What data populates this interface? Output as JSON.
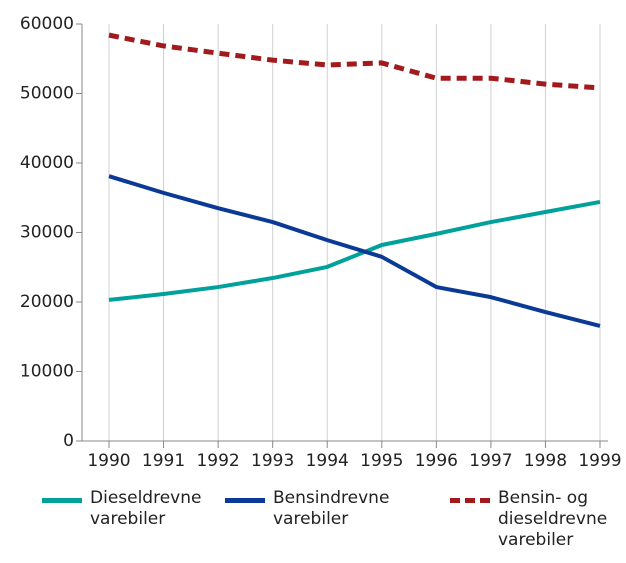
{
  "chart_data": {
    "type": "line",
    "x": [
      1990,
      1991,
      1992,
      1993,
      1994,
      1995,
      1996,
      1997,
      1998,
      1999
    ],
    "xlim": [
      1990,
      1999
    ],
    "xticks": [
      1990,
      1991,
      1992,
      1993,
      1994,
      1995,
      1996,
      1997,
      1998,
      1999
    ],
    "ylim": [
      0,
      60000
    ],
    "yticks": [
      0,
      10000,
      20000,
      30000,
      40000,
      50000,
      60000
    ],
    "grid": true,
    "series": [
      {
        "name": "Dieseldrevne varebiler",
        "color": "#00a19a",
        "dashed": false,
        "values": [
          20300,
          21150,
          22150,
          23450,
          25050,
          28200,
          29800,
          31500,
          32950,
          34400
        ]
      },
      {
        "name": "Bensindrevne varebiler",
        "color": "#0a3a96",
        "dashed": false,
        "values": [
          38100,
          35700,
          33500,
          31500,
          28900,
          26500,
          22150,
          20700,
          18550,
          16550
        ]
      },
      {
        "name": "Bensin- og dieseldrevne varebiler",
        "color": "#a11b1e",
        "dashed": true,
        "values": [
          58400,
          56850,
          55800,
          54800,
          54100,
          54400,
          52200,
          52200,
          51350,
          50800
        ]
      }
    ]
  }
}
